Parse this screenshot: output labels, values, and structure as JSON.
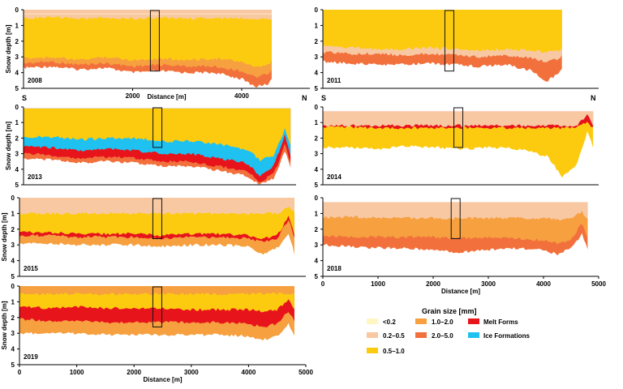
{
  "chart_data": {
    "type": "area",
    "title": "",
    "xlabel": "Distance [m]",
    "ylabel": "Snow depth [m]",
    "xlim": [
      0,
      5000
    ],
    "ylim": [
      0,
      5
    ],
    "x_ticks": [
      0,
      1000,
      2000,
      3000,
      4000,
      5000
    ],
    "y_ticks": [
      0,
      1,
      2,
      3,
      4,
      5
    ],
    "top_panel_x_ticks": [
      2000,
      4000
    ],
    "direction_labels": {
      "start": "S",
      "end": "N"
    },
    "legend": {
      "title": "Grain size [mm]",
      "entries": [
        {
          "label": "<0.2",
          "color": "#fff6c2"
        },
        {
          "label": "0.2–0.5",
          "color": "#f8c8a2"
        },
        {
          "label": "0.5–1.0",
          "color": "#fccb10"
        },
        {
          "label": "1.0–2.0",
          "color": "#f6a040"
        },
        {
          "label": "2.0–5.0",
          "color": "#f2703c"
        },
        {
          "label": "Melt Forms",
          "color": "#e8141c"
        },
        {
          "label": "Ice Formations",
          "color": "#1ec1f0"
        }
      ]
    },
    "x": [
      0,
      500,
      1000,
      1500,
      2000,
      2500,
      3000,
      3500,
      4000,
      4250,
      4500,
      4700,
      4800
    ],
    "panels": [
      {
        "year": "2008",
        "surface_depth": 0.3,
        "layers_bottom_depth": {
          "0.2–0.5": [
            0.55,
            0.5,
            0.55,
            0.55,
            0.55,
            0.5,
            0.55,
            0.55,
            0.55,
            0.55,
            0.55,
            0.55,
            0.55
          ],
          "0.5–1.0": [
            3.1,
            3.0,
            3.2,
            3.0,
            3.2,
            3.1,
            3.2,
            3.1,
            3.3,
            3.7,
            3.5,
            2.5,
            3.1
          ],
          "1.0–2.0": [
            3.4,
            3.3,
            3.5,
            3.4,
            3.6,
            3.5,
            3.6,
            3.6,
            3.9,
            4.3,
            4.1,
            3.1,
            3.5
          ],
          "2.0–5.0": [
            3.7,
            3.6,
            3.8,
            3.7,
            4.0,
            3.9,
            4.0,
            4.0,
            4.4,
            4.9,
            4.7,
            3.5,
            3.9
          ]
        }
      },
      {
        "year": "2011",
        "surface_depth": 0.0,
        "layers_bottom_depth": {
          "0.5–1.0": [
            2.3,
            2.4,
            2.5,
            2.5,
            2.4,
            2.5,
            2.6,
            2.5,
            2.6,
            2.7,
            2.6,
            2.2,
            2.7
          ],
          "0.2–0.5": [
            2.7,
            2.8,
            2.8,
            2.9,
            2.8,
            2.9,
            3.0,
            2.9,
            3.1,
            3.3,
            3.1,
            2.4,
            3.1
          ],
          "2.0–5.0": [
            3.3,
            3.4,
            3.5,
            3.5,
            3.4,
            3.5,
            3.6,
            3.5,
            3.9,
            4.6,
            4.0,
            2.8,
            4.0
          ]
        }
      },
      {
        "year": "2013",
        "surface_depth": 0.1,
        "layers_bottom_depth": {
          "0.5–1.0": [
            1.9,
            1.9,
            2.1,
            2.0,
            2.0,
            2.2,
            2.2,
            2.4,
            2.7,
            3.4,
            3.1,
            1.4,
            2.4
          ],
          "Ice Formations": [
            2.5,
            2.6,
            2.8,
            2.7,
            2.8,
            3.0,
            3.0,
            3.3,
            3.6,
            4.4,
            3.8,
            1.8,
            3.1
          ],
          "Melt Forms": [
            3.0,
            3.1,
            3.3,
            3.2,
            3.3,
            3.5,
            3.5,
            3.8,
            4.1,
            4.8,
            4.3,
            2.4,
            3.6
          ],
          "2.0–5.0": [
            3.3,
            3.4,
            3.6,
            3.5,
            3.6,
            3.8,
            3.8,
            4.1,
            4.4,
            5.0,
            4.6,
            2.8,
            3.9
          ]
        }
      },
      {
        "year": "2014",
        "surface_depth": 0.3,
        "layers_bottom_depth": {
          "0.2–0.5": [
            1.2,
            1.2,
            1.2,
            1.2,
            1.2,
            1.2,
            1.2,
            1.2,
            1.2,
            1.2,
            1.2,
            0.5,
            1.2
          ],
          "Melt Forms": [
            1.3,
            1.3,
            1.35,
            1.35,
            1.35,
            1.35,
            1.35,
            1.35,
            1.35,
            1.35,
            1.3,
            1.0,
            1.3
          ],
          "0.5–1.0": [
            2.6,
            2.6,
            2.7,
            2.5,
            2.6,
            2.7,
            2.6,
            2.7,
            3.2,
            4.5,
            3.8,
            1.6,
            2.6
          ]
        }
      },
      {
        "year": "2015",
        "surface_depth": 0.0,
        "layers_bottom_depth": {
          "0.2–0.5": [
            1.0,
            1.0,
            1.0,
            1.0,
            1.0,
            1.0,
            1.0,
            1.0,
            1.0,
            1.0,
            1.0,
            0.6,
            1.0
          ],
          "0.5–1.0": [
            2.2,
            2.2,
            2.3,
            2.3,
            2.3,
            2.4,
            2.3,
            2.3,
            2.4,
            2.6,
            2.4,
            1.2,
            2.3
          ],
          "Melt Forms": [
            2.4,
            2.4,
            2.5,
            2.5,
            2.5,
            2.6,
            2.5,
            2.5,
            2.6,
            2.8,
            2.6,
            1.4,
            2.5
          ],
          "1.0–2.0": [
            2.9,
            2.9,
            3.0,
            3.0,
            3.0,
            3.1,
            3.0,
            3.0,
            3.1,
            3.6,
            3.2,
            2.2,
            3.6
          ]
        }
      },
      {
        "year": "2018",
        "surface_depth": 0.3,
        "layers_bottom_depth": {
          "0.2–0.5": [
            1.3,
            1.2,
            1.3,
            1.3,
            1.3,
            1.3,
            1.3,
            1.3,
            1.3,
            1.4,
            1.3,
            0.9,
            1.3
          ],
          "1.0–2.0": [
            2.4,
            2.5,
            2.5,
            2.5,
            2.5,
            2.6,
            2.5,
            2.6,
            2.7,
            2.9,
            2.7,
            1.6,
            2.6
          ],
          "2.0–5.0": [
            3.0,
            3.1,
            3.2,
            3.2,
            3.3,
            3.5,
            3.3,
            3.2,
            3.3,
            3.6,
            3.2,
            2.3,
            3.3
          ]
        }
      },
      {
        "year": "2019",
        "surface_depth": 0.0,
        "layers_bottom_depth": {
          "1.0–2.0": [
            0.5,
            0.5,
            0.5,
            0.5,
            0.5,
            0.5,
            0.5,
            0.5,
            0.5,
            0.5,
            0.5,
            0.5,
            0.5
          ],
          "0.5–1.0": [
            1.3,
            1.4,
            1.3,
            1.4,
            1.4,
            1.4,
            1.5,
            1.5,
            1.5,
            1.6,
            1.5,
            0.9,
            1.4
          ],
          "Melt Forms": [
            2.1,
            2.2,
            2.2,
            2.3,
            2.3,
            2.3,
            2.3,
            2.3,
            2.4,
            2.6,
            2.4,
            1.6,
            2.2
          ],
          "1.0–2.0 (lower)": [
            3.0,
            3.0,
            3.0,
            3.1,
            3.1,
            3.1,
            3.1,
            3.1,
            3.2,
            3.4,
            3.2,
            2.4,
            3.2
          ]
        }
      }
    ]
  }
}
